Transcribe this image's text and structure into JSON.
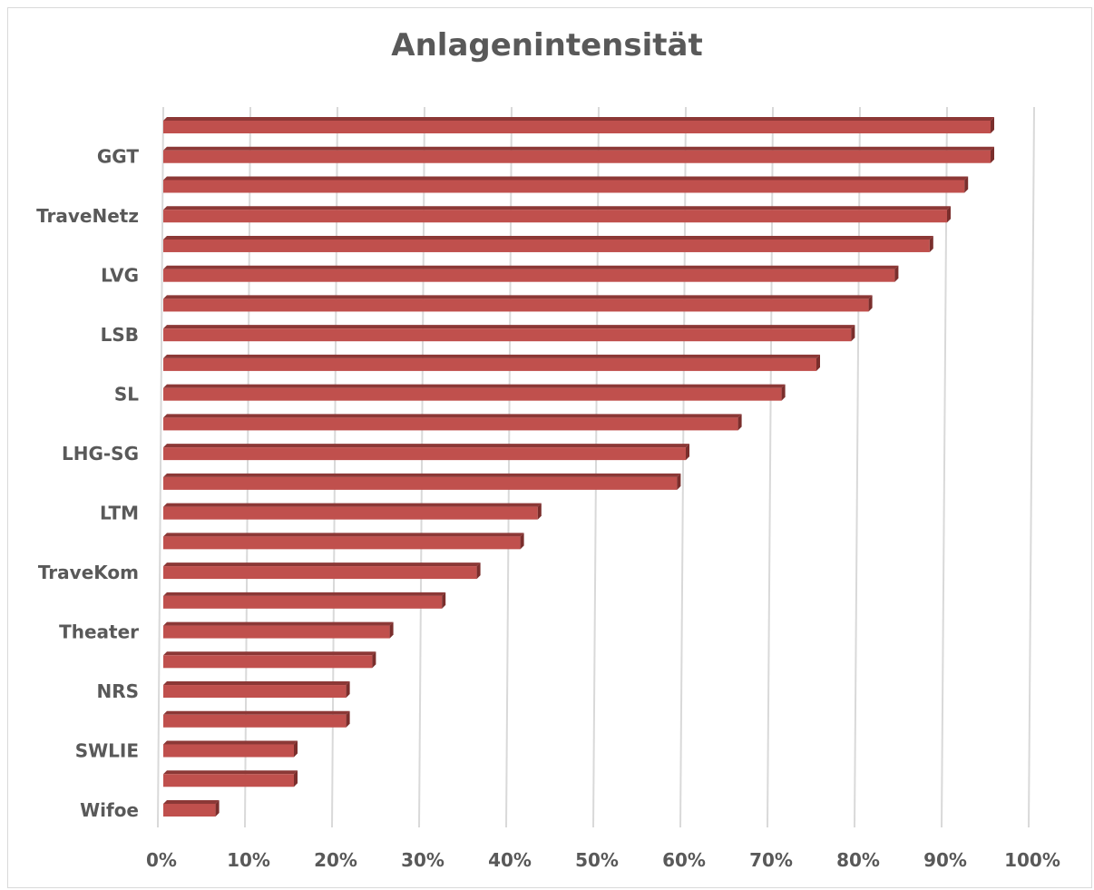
{
  "chart_data": {
    "type": "bar",
    "orientation": "horizontal",
    "title": "Anlagenintensität",
    "categories": [
      "Wifoe",
      "",
      "SWLIE",
      "",
      "NRS",
      "",
      "Theater",
      "",
      "TraveKom",
      "",
      "LTM",
      "",
      "LHG-SG",
      "",
      "SL",
      "",
      "LSB",
      "",
      "LVG",
      "",
      "TraveNetz",
      "",
      "GGT",
      ""
    ],
    "values": [
      6,
      15,
      15,
      21,
      21,
      24,
      26,
      32,
      36,
      41,
      43,
      59,
      60,
      66,
      71,
      75,
      79,
      81,
      84,
      88,
      90,
      92,
      95,
      95
    ],
    "xlim": [
      0,
      100
    ],
    "xticks": [
      "0%",
      "10%",
      "20%",
      "30%",
      "40%",
      "50%",
      "60%",
      "70%",
      "80%",
      "90%",
      "100%"
    ],
    "grid": true,
    "bar_color": "#c0504d",
    "bar_dark_color": "#8c3836"
  }
}
